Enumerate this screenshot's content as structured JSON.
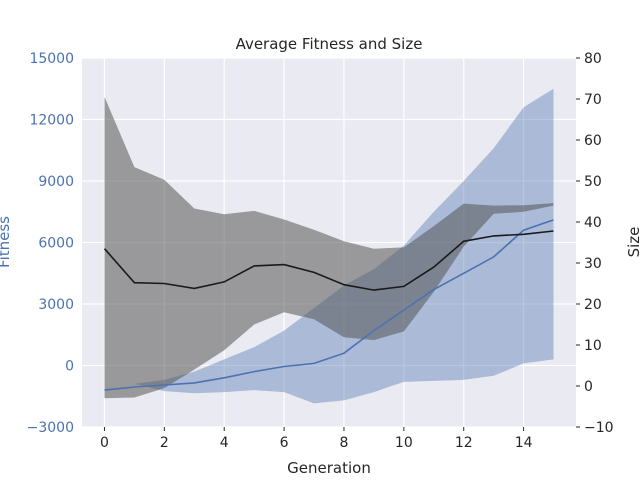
{
  "chart_data": {
    "type": "line",
    "title": "Average Fitness and Size",
    "xlabel": "Generation",
    "ylabel_left": "Fitness",
    "ylabel_right": "Size",
    "xlim": [
      -0.75,
      15.75
    ],
    "ylim_left": [
      -3000,
      15000
    ],
    "ylim_right": [
      -10,
      80
    ],
    "xticks": [
      0,
      2,
      4,
      6,
      8,
      10,
      12,
      14
    ],
    "yticks_left": [
      -3000,
      0,
      3000,
      6000,
      9000,
      12000,
      15000
    ],
    "yticks_right": [
      -10,
      0,
      10,
      20,
      30,
      40,
      50,
      60,
      70,
      80
    ],
    "grid": true,
    "x": [
      0,
      1,
      2,
      3,
      4,
      5,
      6,
      7,
      8,
      9,
      10,
      11,
      12,
      13,
      14,
      15
    ],
    "series": [
      {
        "axis": "left",
        "color": "#4c72b0",
        "band_color": "#4c72b0",
        "mean": [
          -1200,
          -1050,
          -950,
          -850,
          -600,
          -300,
          -50,
          100,
          600,
          1700,
          2700,
          3700,
          4500,
          5300,
          6600,
          7100
        ],
        "lower": [
          -900,
          -900,
          -1250,
          -1350,
          -1300,
          -1200,
          -1300,
          -1850,
          -1700,
          -1300,
          -800,
          -750,
          -700,
          -500,
          100,
          300
        ],
        "upper": [
          -900,
          -900,
          -700,
          -300,
          300,
          900,
          1700,
          2800,
          3900,
          4700,
          5850,
          7500,
          9000,
          10600,
          12600,
          13500
        ]
      },
      {
        "axis": "right",
        "color": "#1a1a1a",
        "band_color": "#555555",
        "mean": [
          33.5,
          25.2,
          25,
          23.8,
          25.4,
          29.3,
          29.6,
          27.7,
          24.7,
          23.4,
          24.3,
          29,
          35.3,
          36.6,
          37,
          37.8
        ],
        "lower": [
          -3,
          -2.8,
          -0.5,
          4,
          8.7,
          15,
          18,
          16.3,
          11.9,
          11.2,
          13.3,
          23,
          34,
          42,
          42.5,
          44
        ],
        "upper": [
          70.5,
          53.4,
          50.3,
          43.3,
          41.9,
          42.7,
          40.6,
          38.1,
          35.3,
          33.5,
          33.8,
          39,
          44.5,
          44,
          44.1,
          44.6
        ]
      }
    ]
  }
}
